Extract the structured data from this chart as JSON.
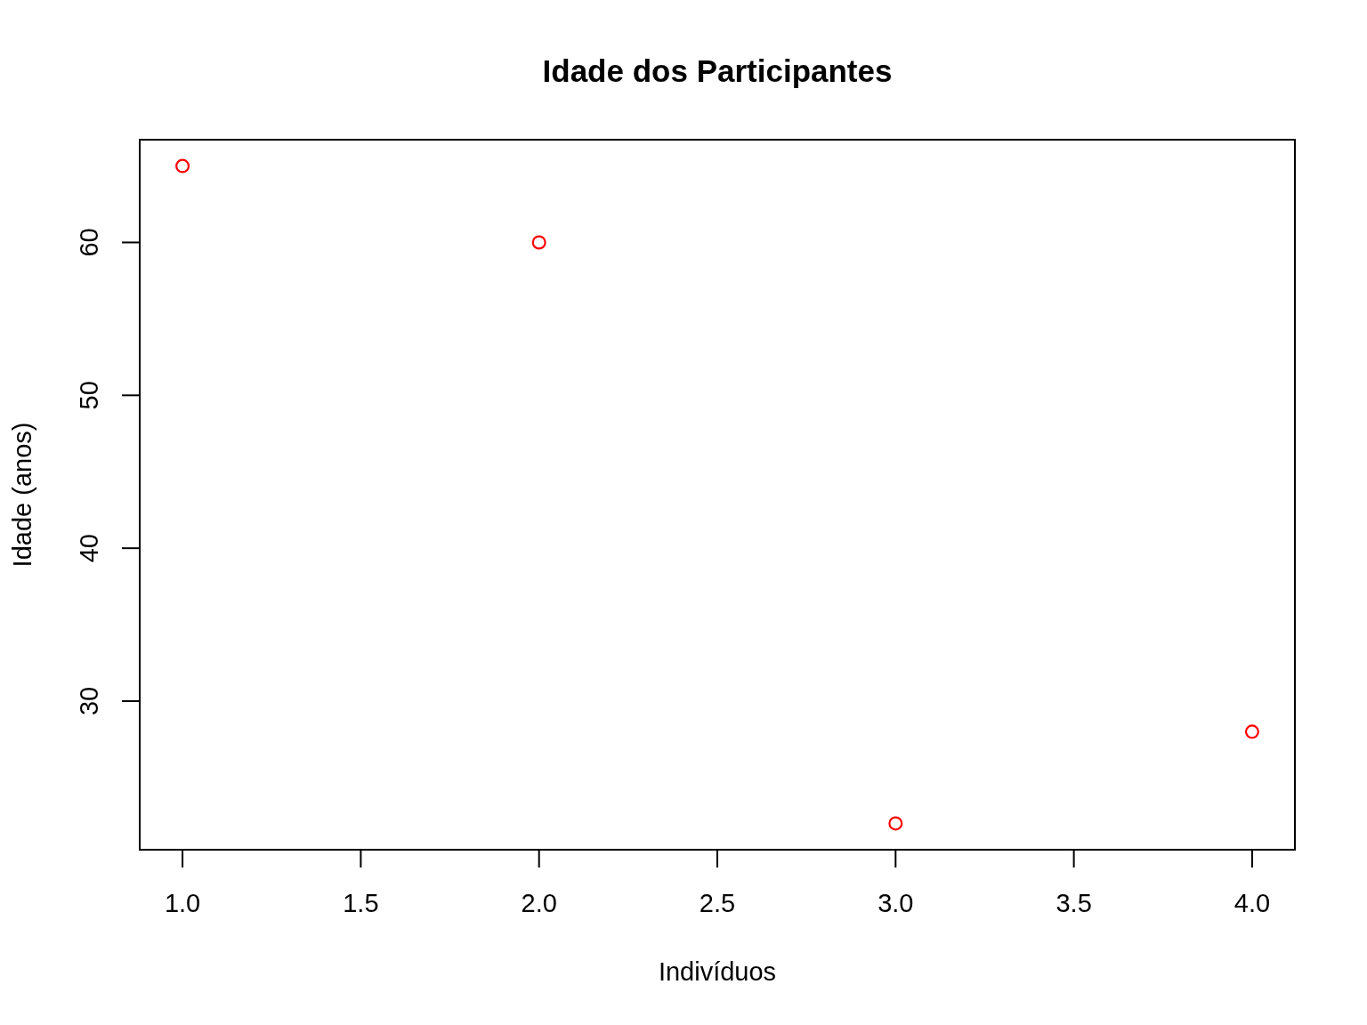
{
  "chart_data": {
    "type": "scatter",
    "title": "Idade dos Participantes",
    "xlabel": "Indivíduos",
    "ylabel": "Idade (anos)",
    "x": [
      1,
      2,
      3,
      4
    ],
    "series": [
      {
        "color": "#ff0000",
        "values": [
          65,
          60,
          22,
          28
        ]
      }
    ],
    "xlim": [
      0.88,
      4.12
    ],
    "ylim": [
      20.28,
      66.72
    ],
    "xticks": [
      {
        "value": 1,
        "label": "1.0"
      },
      {
        "value": 1.5,
        "label": "1.5"
      },
      {
        "value": 2,
        "label": "2.0"
      },
      {
        "value": 2.5,
        "label": "2.5"
      },
      {
        "value": 3,
        "label": "3.0"
      },
      {
        "value": 3.5,
        "label": "3.5"
      },
      {
        "value": 4,
        "label": "4.0"
      }
    ],
    "yticks": [
      30,
      40,
      50,
      60
    ],
    "marker": "circle",
    "grid": false
  }
}
